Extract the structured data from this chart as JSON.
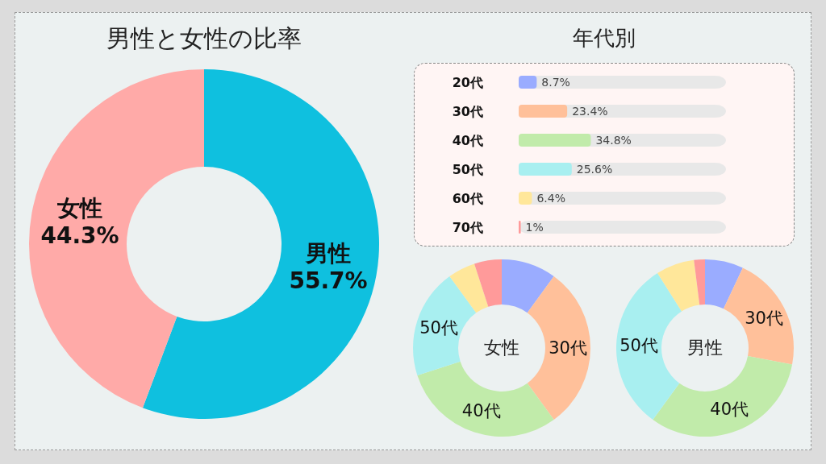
{
  "chart_data": [
    {
      "type": "donut",
      "title": "男性と女性の比率",
      "categories": [
        "男性",
        "女性"
      ],
      "values": [
        55.7,
        44.3
      ],
      "colors": [
        "#0fc0df",
        "#ffaaa8"
      ],
      "value_labels": [
        "55.7%",
        "44.3%"
      ]
    },
    {
      "type": "bar",
      "orientation": "horizontal",
      "title": "年代別",
      "categories": [
        "20代",
        "30代",
        "40代",
        "50代",
        "60代",
        "70代"
      ],
      "values": [
        8.7,
        23.4,
        34.8,
        25.6,
        6.4,
        1
      ],
      "colors": [
        "#9aacff",
        "#ffc09a",
        "#c1ebaa",
        "#a8eff0",
        "#ffe79a",
        "#ff9a9a"
      ],
      "xlim": [
        0,
        100
      ],
      "value_labels": [
        "8.7%",
        "23.4%",
        "34.8%",
        "25.6%",
        "6.4%",
        "1%"
      ]
    },
    {
      "type": "donut",
      "title": "女性",
      "categories": [
        null,
        "30代",
        "40代",
        "50代",
        null,
        null
      ],
      "values": [
        10,
        30,
        30,
        20,
        5,
        5
      ],
      "colors": [
        "#9aacff",
        "#ffc09a",
        "#c1ebaa",
        "#a8eff0",
        "#ffe79a",
        "#ff9a9a"
      ]
    },
    {
      "type": "donut",
      "title": "男性",
      "categories": [
        null,
        "30代",
        "40代",
        "50代",
        null,
        null
      ],
      "values": [
        7,
        21,
        32,
        31,
        7,
        2
      ],
      "colors": [
        "#9aacff",
        "#ffc09a",
        "#c1ebaa",
        "#a8eff0",
        "#ffe79a",
        "#ff9a9a"
      ]
    }
  ]
}
